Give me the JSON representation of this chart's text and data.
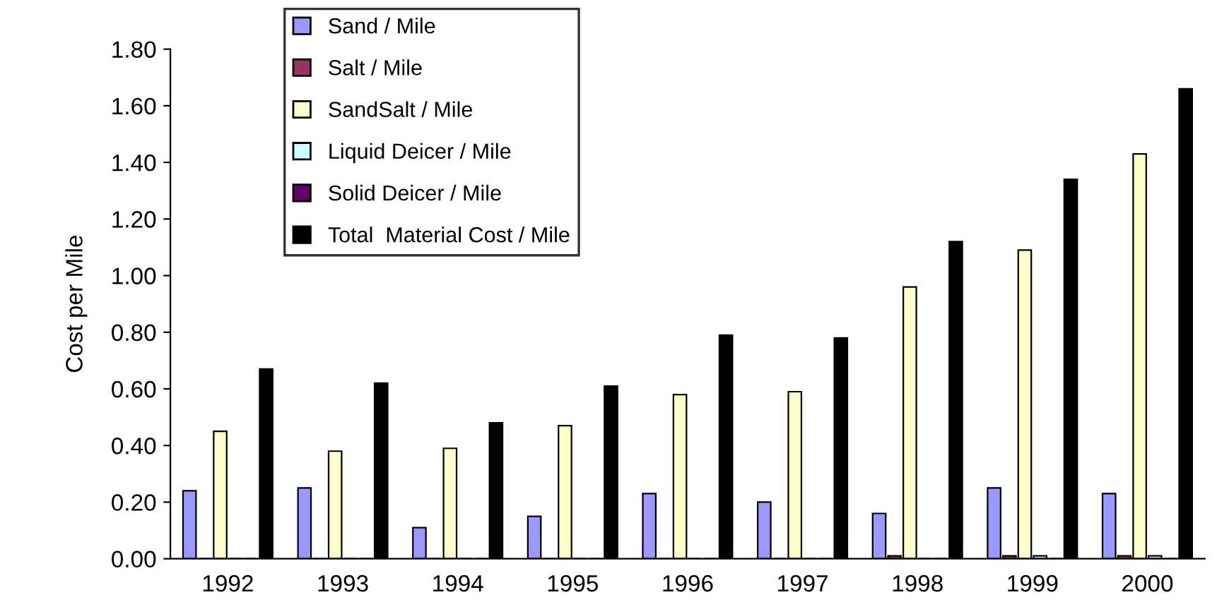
{
  "chart_data": {
    "type": "bar",
    "ylabel": "Cost per Mile",
    "categories": [
      "1992",
      "1993",
      "1994",
      "1995",
      "1996",
      "1997",
      "1998",
      "1999",
      "2000"
    ],
    "series": [
      {
        "name": "Sand / Mile",
        "color": "#9999ff",
        "values": [
          0.24,
          0.25,
          0.11,
          0.15,
          0.23,
          0.2,
          0.16,
          0.25,
          0.23
        ]
      },
      {
        "name": "Salt / Mile",
        "color": "#993366",
        "values": [
          0,
          0,
          0,
          0,
          0,
          0,
          0.01,
          0.01,
          0.01
        ]
      },
      {
        "name": "SandSalt / Mile",
        "color": "#ffffcc",
        "values": [
          0.45,
          0.38,
          0.39,
          0.47,
          0.58,
          0.59,
          0.96,
          1.09,
          1.43
        ]
      },
      {
        "name": "Liquid Deicer / Mile",
        "color": "#ccffff",
        "values": [
          0,
          0,
          0,
          0,
          0,
          0,
          0,
          0.01,
          0.01
        ]
      },
      {
        "name": "Solid Deicer / Mile",
        "color": "#660066",
        "values": [
          0,
          0,
          0,
          0,
          0,
          0,
          0,
          0,
          0
        ]
      },
      {
        "name": "Total  Material Cost / Mile",
        "color": "#000000",
        "values": [
          0.67,
          0.62,
          0.48,
          0.61,
          0.79,
          0.78,
          1.12,
          1.34,
          1.66
        ]
      }
    ],
    "ylim": [
      0,
      1.8
    ],
    "yticks": [
      {
        "value": 0,
        "label": "0.00"
      },
      {
        "value": 0.2,
        "label": "0.20"
      },
      {
        "value": 0.4,
        "label": "0.40"
      },
      {
        "value": 0.6,
        "label": "0.60"
      },
      {
        "value": 0.8,
        "label": "0.80"
      },
      {
        "value": 1.0,
        "label": "1.00"
      },
      {
        "value": 1.2,
        "label": "1.20"
      },
      {
        "value": 1.4,
        "label": "1.40"
      },
      {
        "value": 1.6,
        "label": "1.60"
      },
      {
        "value": 1.8,
        "label": "1.80"
      }
    ],
    "grid": false,
    "legend": "top left"
  }
}
